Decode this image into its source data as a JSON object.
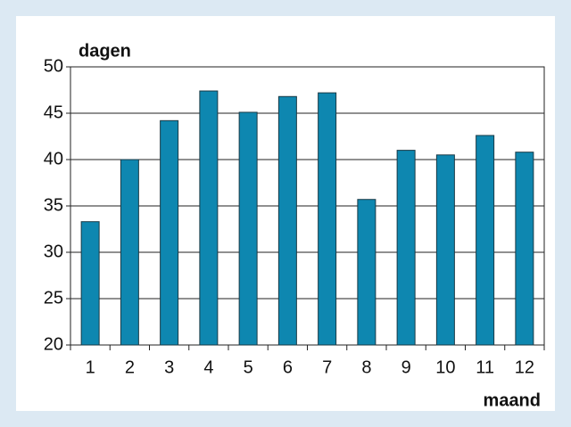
{
  "chart_data": {
    "type": "bar",
    "y_label": "dagen",
    "x_label": "maand",
    "categories": [
      "1",
      "2",
      "3",
      "4",
      "5",
      "6",
      "7",
      "8",
      "9",
      "10",
      "11",
      "12"
    ],
    "values": [
      33.3,
      40.0,
      44.2,
      47.4,
      45.1,
      46.8,
      47.2,
      35.7,
      41.0,
      40.5,
      42.6,
      40.8
    ],
    "color": "#0e87b0",
    "ylim": [
      20,
      50
    ],
    "yticks": [
      20,
      25,
      30,
      35,
      40,
      45,
      50
    ],
    "grid": true
  }
}
